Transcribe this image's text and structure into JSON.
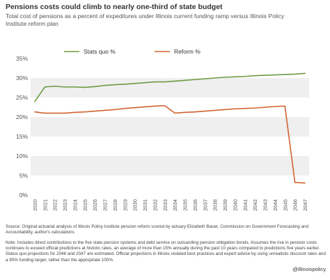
{
  "chart_data": {
    "type": "line",
    "title": "Pensions costs could climb to nearly one-third of state budget",
    "subtitle": "Total cost of pensions as a percent of expeditures under Illinois current funding ramp versus Illinois Policy Institute reform plan",
    "x": [
      "2020",
      "2021",
      "2022",
      "2023",
      "2024",
      "2025",
      "2026",
      "2027",
      "2028",
      "2029",
      "2030",
      "2031",
      "2032",
      "2033",
      "2034",
      "2035",
      "2036",
      "2037",
      "2038",
      "2039",
      "2040",
      "2041",
      "2042",
      "2043",
      "2044",
      "2045",
      "2046",
      "2047"
    ],
    "ylim": [
      0,
      35
    ],
    "yticks": [
      0,
      5,
      10,
      15,
      20,
      25,
      30,
      35
    ],
    "ytick_labels": [
      "0%",
      "5%",
      "10%",
      "15%",
      "20%",
      "25%",
      "30%",
      "35%"
    ],
    "grid": "alternating horizontal bands",
    "legend": "top",
    "series": [
      {
        "name": "Stats quo %",
        "color": "#6b9a3e",
        "values": [
          24.0,
          27.7,
          27.9,
          27.7,
          27.7,
          27.6,
          27.8,
          28.1,
          28.3,
          28.4,
          28.6,
          28.8,
          29.0,
          29.0,
          29.2,
          29.4,
          29.6,
          29.8,
          30.0,
          30.2,
          30.3,
          30.4,
          30.6,
          30.7,
          30.8,
          30.9,
          31.0,
          31.2
        ]
      },
      {
        "name": "Reform %",
        "color": "#d2622f",
        "values": [
          21.3,
          21.0,
          21.0,
          21.0,
          21.2,
          21.3,
          21.5,
          21.7,
          21.9,
          22.2,
          22.4,
          22.6,
          22.8,
          22.9,
          21.0,
          21.2,
          21.3,
          21.5,
          21.7,
          21.9,
          22.1,
          22.2,
          22.3,
          22.5,
          22.7,
          22.8,
          3.2,
          3.1
        ]
      }
    ]
  },
  "source_text": "Source: Original actuarial analysis of Illinois Policy Institute pension reform scored by actuary Elizabeth Bauer, Commission on Government Forecasting and Accountability, author's calculations",
  "note_text": "Note: Includes direct contributions to the five state pension systems and debt service on outsanding pension obligation bonds. Assumes the rise in pension costs continues to exceed official predictions at historic rates, an average of more than 15% annually during the past 10 years compared to predictions five years earlier. Status quo projections for 2046 and 2047 are estimated. Official projections in Illinois violated best practices and expert advice by using unrealistic discount rates and a 90% funding target, rather than the appropriate 100%.",
  "credit": "@illinoispolicy",
  "colors": {
    "band": "#efefef",
    "axis_text": "#555555",
    "text": "#333333"
  }
}
